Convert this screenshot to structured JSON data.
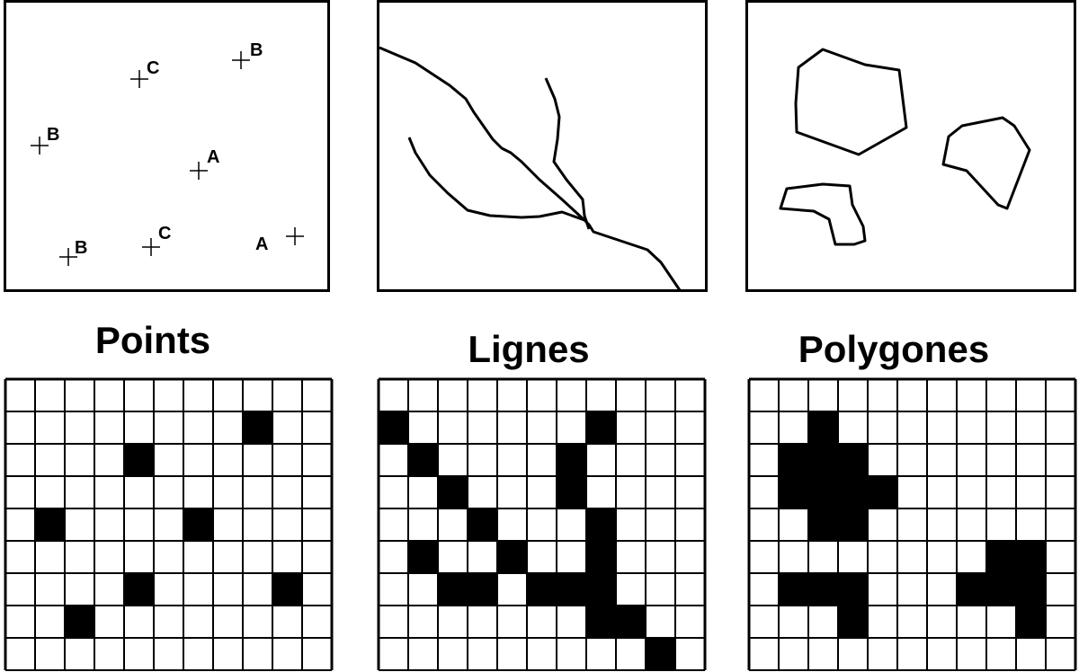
{
  "titles": {
    "points": "Points",
    "lines": "Lignes",
    "polygones": "Polygones"
  },
  "points": [
    {
      "label": "C"
    },
    {
      "label": "B"
    },
    {
      "label": "B"
    },
    {
      "label": "A"
    },
    {
      "label": "B"
    },
    {
      "label": "C"
    },
    {
      "label": "A"
    }
  ],
  "rasters": {
    "columns": 11,
    "rows": 9,
    "points_cells": [
      [
        8,
        1
      ],
      [
        4,
        2
      ],
      [
        1,
        4
      ],
      [
        6,
        4
      ],
      [
        4,
        6
      ],
      [
        9,
        6
      ],
      [
        2,
        7
      ]
    ],
    "lines_cells": [
      [
        0,
        1
      ],
      [
        7,
        1
      ],
      [
        1,
        2
      ],
      [
        6,
        2
      ],
      [
        2,
        3
      ],
      [
        6,
        3
      ],
      [
        3,
        4
      ],
      [
        7,
        4
      ],
      [
        1,
        5
      ],
      [
        4,
        5
      ],
      [
        7,
        5
      ],
      [
        2,
        6
      ],
      [
        3,
        6
      ],
      [
        5,
        6
      ],
      [
        6,
        6
      ],
      [
        7,
        6
      ],
      [
        7,
        7
      ],
      [
        8,
        7
      ],
      [
        9,
        8
      ]
    ],
    "polygones_cells": [
      [
        2,
        1
      ],
      [
        1,
        2
      ],
      [
        2,
        2
      ],
      [
        3,
        2
      ],
      [
        1,
        3
      ],
      [
        2,
        3
      ],
      [
        3,
        3
      ],
      [
        4,
        3
      ],
      [
        2,
        4
      ],
      [
        3,
        4
      ],
      [
        8,
        5
      ],
      [
        9,
        5
      ],
      [
        1,
        6
      ],
      [
        2,
        6
      ],
      [
        3,
        6
      ],
      [
        7,
        6
      ],
      [
        8,
        6
      ],
      [
        9,
        6
      ],
      [
        3,
        7
      ],
      [
        9,
        7
      ]
    ]
  },
  "colors": {
    "ink": "#000000",
    "background": "#ffffff"
  }
}
